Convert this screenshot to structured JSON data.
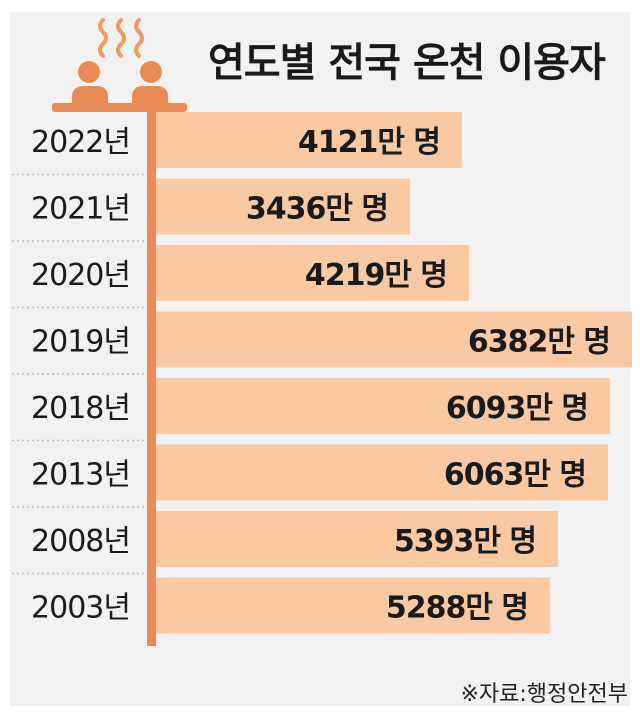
{
  "title": "연도별 전국 온천 이용자",
  "source": "※자료:행정안전부",
  "colors": {
    "bar": "#f8c9a2",
    "accent": "#e98a57",
    "icon": "#e98a57",
    "steam": "#ef9a63"
  },
  "icon_name": "hot-spring-bathers-icon",
  "chart_data": {
    "type": "bar",
    "orientation": "horizontal",
    "categories": [
      "2022년",
      "2021년",
      "2020년",
      "2019년",
      "2018년",
      "2013년",
      "2008년",
      "2003년"
    ],
    "values": [
      4121,
      3436,
      4219,
      6382,
      6093,
      6063,
      5393,
      5288
    ],
    "labels": [
      "4121만 명",
      "3436만 명",
      "4219만 명",
      "6382만 명",
      "6093만 명",
      "6063만 명",
      "5393만 명",
      "5288만 명"
    ],
    "unit": "만 명",
    "xlim": [
      0,
      6382
    ],
    "title": "연도별 전국 온천 이용자",
    "grid": false,
    "legend": "none"
  }
}
